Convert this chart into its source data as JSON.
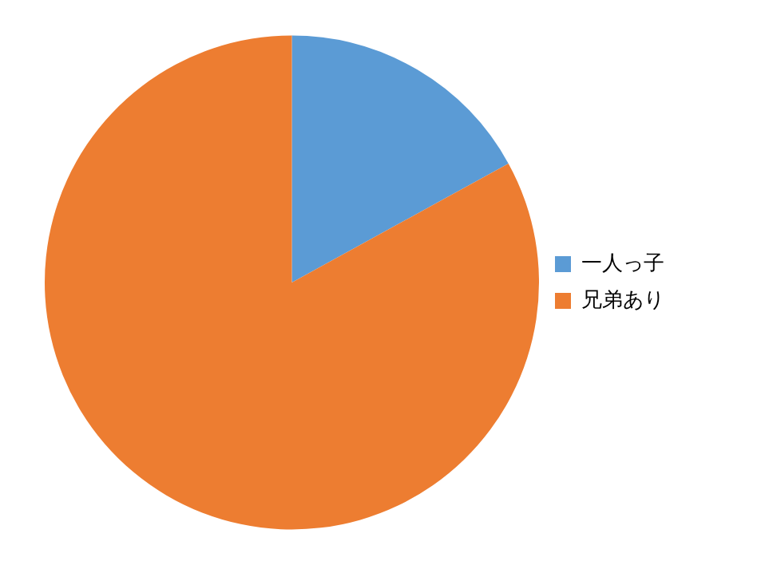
{
  "chart_data": {
    "type": "pie",
    "categories": [
      "一人っ子",
      "兄弟あり"
    ],
    "values": [
      17,
      83
    ],
    "colors": [
      "#5b9bd5",
      "#ed7d31"
    ],
    "legend": "right"
  }
}
